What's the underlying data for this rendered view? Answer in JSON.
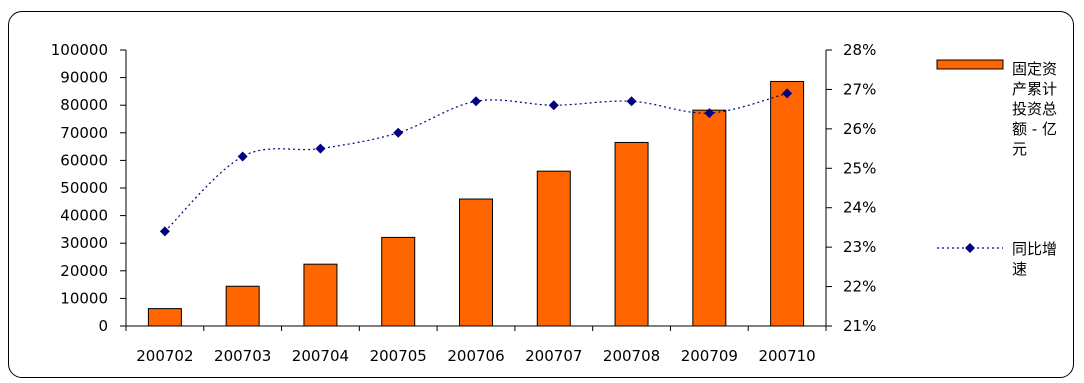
{
  "chart_data": {
    "type": "bar",
    "categories": [
      "200702",
      "200703",
      "200704",
      "200705",
      "200706",
      "200707",
      "200708",
      "200709",
      "200710"
    ],
    "series": [
      {
        "name": "固定资产累计投资总额 - 亿元",
        "type": "bar",
        "axis": "left",
        "values": [
          6300,
          14400,
          22400,
          32100,
          46000,
          56100,
          66500,
          78200,
          88600
        ],
        "color": "#FF6600"
      },
      {
        "name": "同比增速",
        "type": "line",
        "axis": "right",
        "line_style": "dotted",
        "marker": "diamond",
        "values": [
          23.4,
          25.3,
          25.5,
          25.9,
          26.7,
          26.6,
          26.7,
          26.4,
          26.9
        ],
        "color": "#000080"
      }
    ],
    "y_left": {
      "min": 0,
      "max": 100000,
      "step": 10000,
      "ticks": [
        "0",
        "10000",
        "20000",
        "30000",
        "40000",
        "50000",
        "60000",
        "70000",
        "80000",
        "90000",
        "100000"
      ]
    },
    "y_right": {
      "min": 21,
      "max": 28,
      "step": 1,
      "ticks": [
        "21%",
        "22%",
        "23%",
        "24%",
        "25%",
        "26%",
        "27%",
        "28%"
      ]
    },
    "grid": false,
    "legend_position": "right"
  }
}
